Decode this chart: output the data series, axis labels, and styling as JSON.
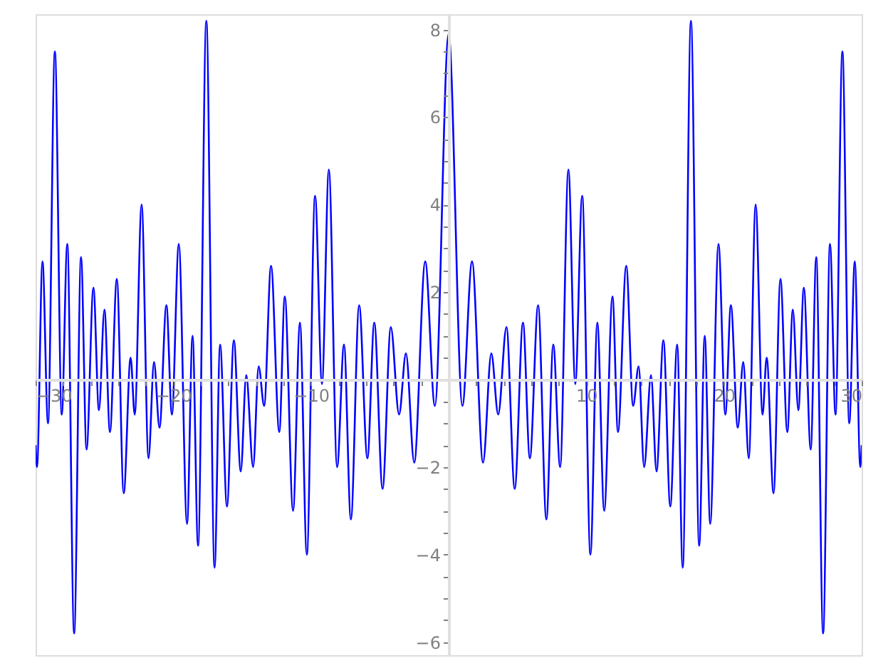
{
  "chart_data": {
    "type": "line",
    "series": [
      {
        "color": "#0000ff",
        "x": [
          -30,
          -29.9,
          -29.5,
          -29.1,
          -28.6,
          -28.1,
          -27.7,
          -27.2,
          -26.7,
          -26.3,
          -25.8,
          -25.4,
          -25.0,
          -24.6,
          -24.1,
          -23.6,
          -23.1,
          -22.8,
          -22.3,
          -21.8,
          -21.4,
          -21.0,
          -20.5,
          -20.1,
          -19.6,
          -19.0,
          -18.6,
          -18.2,
          -17.6,
          -17.0,
          -16.6,
          -16.1,
          -15.6,
          -15.1,
          -14.7,
          -14.2,
          -13.8,
          -13.4,
          -12.9,
          -12.3,
          -11.9,
          -11.3,
          -10.8,
          -10.3,
          -9.7,
          -9.2,
          -8.7,
          -8.1,
          -7.6,
          -7.1,
          -6.5,
          -5.9,
          -5.4,
          -4.8,
          -4.2,
          -3.6,
          -3.1,
          -2.5,
          -1.7,
          -1.0,
          0,
          1.0,
          1.7,
          2.5,
          3.1,
          3.6,
          4.2,
          4.8,
          5.4,
          5.9,
          6.5,
          7.1,
          7.6,
          8.1,
          8.7,
          9.2,
          9.7,
          10.3,
          10.8,
          11.3,
          11.9,
          12.3,
          12.9,
          13.4,
          13.8,
          14.2,
          14.7,
          15.1,
          15.6,
          16.1,
          16.6,
          17.0,
          17.6,
          18.2,
          18.6,
          19.0,
          19.6,
          20.1,
          20.5,
          21.0,
          21.4,
          21.8,
          22.3,
          22.8,
          23.1,
          23.6,
          24.1,
          24.6,
          25.0,
          25.4,
          25.8,
          26.3,
          26.7,
          27.2,
          27.7,
          28.1,
          28.6,
          29.1,
          29.5,
          29.9,
          30
        ],
        "values": [
          -1.5,
          -2.0,
          2.7,
          -1.0,
          7.5,
          -0.8,
          3.1,
          -5.8,
          2.8,
          -1.6,
          2.1,
          -0.7,
          1.6,
          -1.2,
          2.3,
          -2.6,
          0.5,
          -0.8,
          4.0,
          -1.8,
          0.4,
          -1.1,
          1.7,
          -0.8,
          3.1,
          -3.3,
          1.0,
          -3.8,
          8.2,
          -4.3,
          0.8,
          -2.9,
          0.9,
          -2.1,
          0.1,
          -2.0,
          0.3,
          -0.6,
          2.6,
          -1.2,
          1.9,
          -3.0,
          1.3,
          -4.0,
          4.2,
          -0.1,
          4.8,
          -2.0,
          0.8,
          -3.2,
          1.7,
          -1.8,
          1.3,
          -2.5,
          1.2,
          -0.8,
          0.6,
          -1.9,
          2.7,
          -0.6,
          7.9,
          -0.6,
          2.7,
          -1.9,
          0.6,
          -0.8,
          1.2,
          -2.5,
          1.3,
          -1.8,
          1.7,
          -3.2,
          0.8,
          -2.0,
          4.8,
          -0.1,
          4.2,
          -4.0,
          1.3,
          -3.0,
          1.9,
          -1.2,
          2.6,
          -0.6,
          0.3,
          -2.0,
          0.1,
          -2.1,
          0.9,
          -2.9,
          0.8,
          -4.3,
          8.2,
          -3.8,
          1.0,
          -3.3,
          3.1,
          -0.8,
          1.7,
          -1.1,
          0.4,
          -1.8,
          4.0,
          -0.8,
          0.5,
          -2.6,
          2.3,
          -1.2,
          1.6,
          -0.7,
          2.1,
          -1.6,
          2.8,
          -5.8,
          3.1,
          -0.8,
          7.5,
          -1.0,
          2.7,
          -2.0,
          -1.5
        ]
      }
    ],
    "xlim": [
      -30,
      30
    ],
    "ylim": [
      -6.3,
      8.35
    ],
    "xticks": [
      {
        "value": -30,
        "label": "−30"
      },
      {
        "value": -28,
        "label": null
      },
      {
        "value": -26,
        "label": null
      },
      {
        "value": -24,
        "label": null
      },
      {
        "value": -22,
        "label": null
      },
      {
        "value": -20,
        "label": "−20"
      },
      {
        "value": -18,
        "label": null
      },
      {
        "value": -16,
        "label": null
      },
      {
        "value": -14,
        "label": null
      },
      {
        "value": -12,
        "label": null
      },
      {
        "value": -10,
        "label": "−10"
      },
      {
        "value": -8,
        "label": null
      },
      {
        "value": -6,
        "label": null
      },
      {
        "value": -4,
        "label": null
      },
      {
        "value": -2,
        "label": null
      },
      {
        "value": 2,
        "label": null
      },
      {
        "value": 4,
        "label": null
      },
      {
        "value": 6,
        "label": null
      },
      {
        "value": 8,
        "label": null
      },
      10,
      {
        "value": 12,
        "label": null
      },
      {
        "value": 14,
        "label": null
      },
      {
        "value": 16,
        "label": null
      },
      {
        "value": 18,
        "label": null
      },
      20,
      {
        "value": 22,
        "label": null
      },
      {
        "value": 24,
        "label": null
      },
      {
        "value": 26,
        "label": null
      },
      {
        "value": 28,
        "label": null
      },
      30
    ],
    "yticks": [
      {
        "value": -6,
        "label": "−6"
      },
      {
        "value": -5.5,
        "label": null
      },
      {
        "value": -5,
        "label": null
      },
      {
        "value": -4.5,
        "label": null
      },
      {
        "value": -4,
        "label": "−4"
      },
      {
        "value": -3.5,
        "label": null
      },
      {
        "value": -3,
        "label": null
      },
      {
        "value": -2.5,
        "label": null
      },
      {
        "value": -2,
        "label": "−2"
      },
      {
        "value": -1.5,
        "label": null
      },
      {
        "value": -1,
        "label": null
      },
      {
        "value": -0.5,
        "label": null
      },
      {
        "value": 0.5,
        "label": null
      },
      {
        "value": 1,
        "label": null
      },
      {
        "value": 1.5,
        "label": null
      },
      2,
      {
        "value": 2.5,
        "label": null
      },
      {
        "value": 3,
        "label": null
      },
      {
        "value": 3.5,
        "label": null
      },
      4,
      {
        "value": 4.5,
        "label": null
      },
      {
        "value": 5,
        "label": null
      },
      {
        "value": 5.5,
        "label": null
      },
      6,
      {
        "value": 6.5,
        "label": null
      },
      {
        "value": 7,
        "label": null
      },
      {
        "value": 7.5,
        "label": null
      },
      8
    ],
    "marker": "none",
    "line_style": "solid",
    "grid": false
  }
}
